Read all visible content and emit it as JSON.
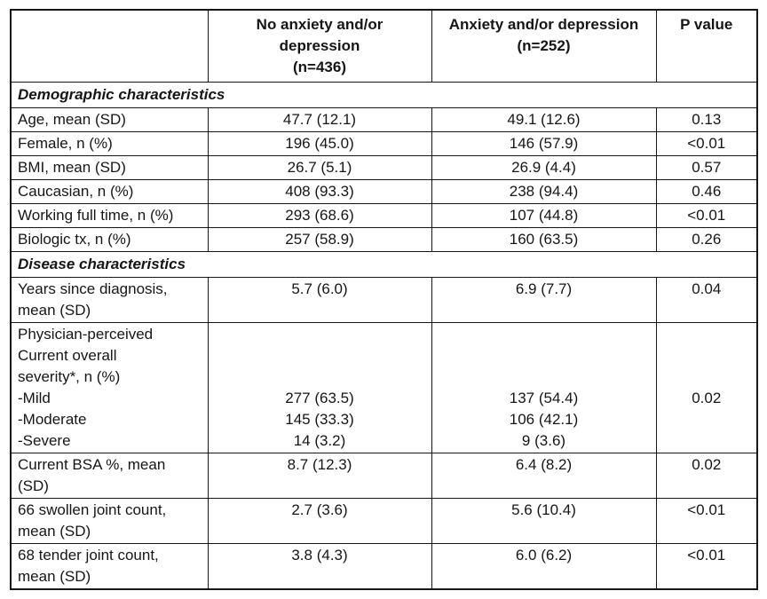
{
  "table": {
    "header": {
      "label": "",
      "group1": [
        "No anxiety and/or",
        "depression",
        "(n=436)"
      ],
      "group2": [
        "Anxiety and/or depression",
        "(n=252)"
      ],
      "pvalue": "P value"
    },
    "rows": [
      {
        "type": "section",
        "label": "Demographic characteristics"
      },
      {
        "type": "data",
        "label": "Age, mean (SD)",
        "g1": "47.7 (12.1)",
        "g2": "49.1 (12.6)",
        "p": "0.13"
      },
      {
        "type": "data",
        "label": "Female, n (%)",
        "g1": "196 (45.0)",
        "g2": "146 (57.9)",
        "p": "<0.01"
      },
      {
        "type": "data",
        "label": "BMI, mean (SD)",
        "g1": "26.7 (5.1)",
        "g2": "26.9 (4.4)",
        "p": "0.57"
      },
      {
        "type": "data",
        "label": "Caucasian, n (%)",
        "g1": "408 (93.3)",
        "g2": "238 (94.4)",
        "p": "0.46"
      },
      {
        "type": "data",
        "label": "Working full time, n (%)",
        "g1": "293 (68.6)",
        "g2": "107 (44.8)",
        "p": "<0.01"
      },
      {
        "type": "data",
        "label": "Biologic tx, n (%)",
        "g1": "257 (58.9)",
        "g2": "160 (63.5)",
        "p": "0.26"
      },
      {
        "type": "section",
        "label": "Disease characteristics"
      },
      {
        "type": "data",
        "label": [
          "Years since diagnosis,",
          "mean (SD)"
        ],
        "g1": "5.7 (6.0)",
        "g2": "6.9 (7.7)",
        "p": "0.04"
      },
      {
        "type": "data",
        "label": [
          "Physician-perceived",
          "Current overall",
          "severity*, n (%)",
          "-Mild",
          "-Moderate",
          "-Severe"
        ],
        "g1": [
          "",
          "",
          "",
          "277 (63.5)",
          "145 (33.3)",
          "14 (3.2)"
        ],
        "g2": [
          "",
          "",
          "",
          "137 (54.4)",
          "106 (42.1)",
          "9 (3.6)"
        ],
        "p": [
          "",
          "",
          "",
          "0.02"
        ]
      },
      {
        "type": "data",
        "label": [
          "Current BSA %, mean",
          "(SD)"
        ],
        "g1": "8.7 (12.3)",
        "g2": "6.4 (8.2)",
        "p": "0.02"
      },
      {
        "type": "data",
        "label": [
          "66 swollen joint count,",
          "mean (SD)"
        ],
        "g1": "2.7 (3.6)",
        "g2": "5.6 (10.4)",
        "p": "<0.01"
      },
      {
        "type": "data",
        "label": [
          "68 tender joint count,",
          "mean (SD)"
        ],
        "g1": "3.8 (4.3)",
        "g2": "6.0 (6.2)",
        "p": "<0.01"
      }
    ]
  },
  "chart_data": {
    "type": "table",
    "title": "",
    "columns": [
      "",
      "No anxiety and/or depression (n=436)",
      "Anxiety and/or depression (n=252)",
      "P value"
    ],
    "sections": [
      {
        "name": "Demographic characteristics",
        "rows": [
          [
            "Age, mean (SD)",
            "47.7 (12.1)",
            "49.1 (12.6)",
            "0.13"
          ],
          [
            "Female, n (%)",
            "196 (45.0)",
            "146 (57.9)",
            "<0.01"
          ],
          [
            "BMI, mean (SD)",
            "26.7 (5.1)",
            "26.9 (4.4)",
            "0.57"
          ],
          [
            "Caucasian, n (%)",
            "408 (93.3)",
            "238 (94.4)",
            "0.46"
          ],
          [
            "Working full time, n (%)",
            "293 (68.6)",
            "107 (44.8)",
            "<0.01"
          ],
          [
            "Biologic tx, n (%)",
            "257 (58.9)",
            "160 (63.5)",
            "0.26"
          ]
        ]
      },
      {
        "name": "Disease characteristics",
        "rows": [
          [
            "Years since diagnosis, mean (SD)",
            "5.7 (6.0)",
            "6.9 (7.7)",
            "0.04"
          ],
          [
            "Physician-perceived Current overall severity*, n (%) -Mild",
            "277 (63.5)",
            "137 (54.4)",
            "0.02"
          ],
          [
            "Physician-perceived Current overall severity*, n (%) -Moderate",
            "145 (33.3)",
            "106 (42.1)",
            ""
          ],
          [
            "Physician-perceived Current overall severity*, n (%) -Severe",
            "14 (3.2)",
            "9 (3.6)",
            ""
          ],
          [
            "Current BSA %, mean (SD)",
            "8.7 (12.3)",
            "6.4 (8.2)",
            "0.02"
          ],
          [
            "66 swollen joint count, mean (SD)",
            "2.7 (3.6)",
            "5.6 (10.4)",
            "<0.01"
          ],
          [
            "68 tender joint count, mean (SD)",
            "3.8 (4.3)",
            "6.0 (6.2)",
            "<0.01"
          ]
        ]
      }
    ]
  }
}
